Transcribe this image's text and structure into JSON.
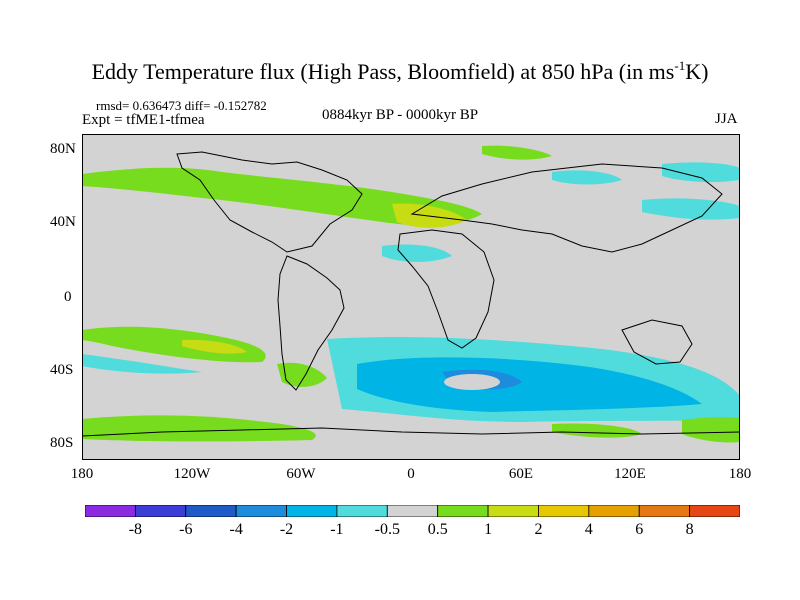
{
  "title": {
    "text_main": "Eddy Temperature flux (High Pass, Bloomfield) at 850 hPa (in ms",
    "text_sup": "-1",
    "text_end": "K)"
  },
  "stats_line": "rmsd= 0.636473 diff= -0.152782",
  "expt_line": "Expt = tfME1-tfmea",
  "period": "0884kyr BP - 0000kyr BP",
  "season": "JJA",
  "map": {
    "background_color": "#d3d3d3",
    "coastline_color": "#000000",
    "y_ticks": [
      "80N",
      "40N",
      "0",
      "40S",
      "80S"
    ],
    "x_ticks": [
      "180",
      "120W",
      "60W",
      "0",
      "60E",
      "120E",
      "180"
    ]
  },
  "colorbar": {
    "colors": [
      "#8a2be2",
      "#3c3cd6",
      "#1e5ac8",
      "#1e8cdc",
      "#00b4e6",
      "#50dcdc",
      "#d3d3d3",
      "#78dc1e",
      "#c8dc14",
      "#e6c800",
      "#e6a000",
      "#e67814",
      "#e64614"
    ],
    "labels": [
      "-8",
      "-6",
      "-4",
      "-2",
      "-1",
      "-0.5",
      "0.5",
      "1",
      "2",
      "4",
      "6",
      "8"
    ]
  }
}
